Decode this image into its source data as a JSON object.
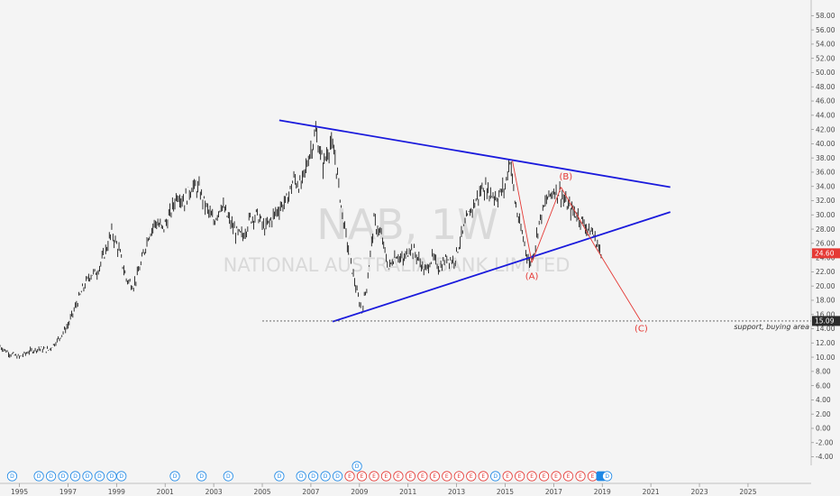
{
  "chart_data": {
    "type": "line",
    "watermark": {
      "symbol": "NAB, 1W",
      "name": "NATIONAL AUSTRALIA BANK LIMITED"
    },
    "xlim": [
      1994.2,
      2027.6
    ],
    "ylim": [
      -5.2,
      60.2
    ],
    "x_ticks": [
      "1995",
      "1997",
      "1999",
      "2001",
      "2003",
      "2005",
      "2007",
      "2009",
      "2011",
      "2013",
      "2015",
      "2017",
      "2019",
      "2021",
      "2023",
      "2025"
    ],
    "x_tick_values": [
      1995,
      1997,
      1999,
      2001,
      2003,
      2005,
      2007,
      2009,
      2011,
      2013,
      2015,
      2017,
      2019,
      2021,
      2023,
      2025
    ],
    "y_ticks": [
      "-4.00",
      "-2.00",
      "0.00",
      "2.00",
      "4.00",
      "6.00",
      "8.00",
      "10.00",
      "12.00",
      "14.00",
      "16.00",
      "18.00",
      "20.00",
      "22.00",
      "24.00",
      "26.00",
      "28.00",
      "30.00",
      "32.00",
      "34.00",
      "36.00",
      "38.00",
      "40.00",
      "42.00",
      "44.00",
      "46.00",
      "48.00",
      "50.00",
      "52.00",
      "54.00",
      "56.00",
      "58.00"
    ],
    "price_series": {
      "name": "NAB",
      "x": [
        1994.2,
        1994.6,
        1995.0,
        1995.4,
        1995.8,
        1996.2,
        1996.6,
        1997.0,
        1997.3,
        1997.6,
        1997.9,
        1998.2,
        1998.5,
        1998.8,
        1999.1,
        1999.4,
        1999.7,
        2000.0,
        2000.3,
        2000.6,
        2000.9,
        2001.2,
        2001.5,
        2001.8,
        2002.1,
        2002.4,
        2002.7,
        2003.0,
        2003.3,
        2003.6,
        2003.9,
        2004.2,
        2004.5,
        2004.8,
        2005.1,
        2005.4,
        2005.7,
        2006.0,
        2006.3,
        2006.6,
        2006.9,
        2007.2,
        2007.5,
        2007.8,
        2008.0,
        2008.3,
        2008.6,
        2008.9,
        2009.1,
        2009.3,
        2009.6,
        2009.9,
        2010.2,
        2010.5,
        2010.8,
        2011.1,
        2011.4,
        2011.7,
        2012.0,
        2012.3,
        2012.6,
        2012.9,
        2013.2,
        2013.5,
        2013.8,
        2014.1,
        2014.4,
        2014.7,
        2015.0,
        2015.2,
        2015.4,
        2015.6,
        2015.8,
        2016.0,
        2016.2,
        2016.4,
        2016.7,
        2017.0,
        2017.3,
        2017.5,
        2017.8,
        2018.1,
        2018.4,
        2018.6,
        2018.9,
        2019.0
      ],
      "y": [
        11.5,
        10.5,
        10.0,
        10.8,
        11.2,
        11.0,
        12.5,
        14.5,
        17.0,
        19.5,
        21.5,
        22.0,
        24.5,
        27.5,
        25.0,
        21.0,
        20.0,
        23.0,
        27.0,
        29.0,
        28.0,
        30.0,
        33.0,
        32.0,
        34.0,
        33.5,
        31.0,
        29.0,
        31.5,
        29.5,
        27.5,
        27.0,
        29.5,
        30.0,
        28.0,
        29.5,
        31.0,
        32.0,
        35.0,
        34.0,
        38.0,
        41.5,
        37.0,
        40.0,
        38.0,
        30.0,
        24.0,
        19.0,
        16.5,
        20.0,
        29.0,
        27.0,
        22.5,
        24.5,
        23.5,
        25.5,
        24.0,
        22.0,
        24.0,
        22.5,
        24.0,
        23.5,
        27.0,
        30.0,
        32.0,
        34.0,
        33.0,
        32.5,
        34.0,
        38.0,
        32.0,
        28.5,
        26.0,
        23.0,
        25.0,
        29.0,
        32.0,
        33.5,
        33.0,
        31.5,
        30.5,
        29.5,
        28.0,
        27.5,
        25.0,
        23.0
      ]
    },
    "drawings": {
      "upper_trendline": {
        "color": "#1a1adc",
        "from": [
          2005.7,
          43.3
        ],
        "to": [
          2021.8,
          33.9
        ]
      },
      "lower_trendline": {
        "color": "#1a1adc",
        "from": [
          2007.9,
          15.0
        ],
        "to": [
          2021.8,
          30.4
        ]
      },
      "support_line": {
        "color": "#555555",
        "y": 15.09,
        "from_x": 2005.0,
        "note": "support, buying area",
        "price_tag": "15.09"
      },
      "wave_lines": {
        "color": "#e53935",
        "points": [
          [
            2015.3,
            37.6
          ],
          [
            2016.1,
            23.3
          ],
          [
            2017.3,
            33.9
          ],
          [
            2018.7,
            25.6
          ],
          [
            2020.6,
            15.0
          ]
        ]
      },
      "wave_labels": [
        {
          "text": "(A)",
          "x": 2016.1,
          "y": 21.0
        },
        {
          "text": "(B)",
          "x": 2017.5,
          "y": 35.0
        },
        {
          "text": "(C)",
          "x": 2020.6,
          "y": 13.6
        }
      ]
    },
    "current_price": {
      "value": 24.6,
      "label": "24.60",
      "color": "#e53935"
    },
    "events": {
      "row_y_value": -5.3,
      "items": [
        {
          "x": 1994.7,
          "label": "D",
          "kind": "dividend"
        },
        {
          "x": 1995.8,
          "label": "D",
          "kind": "dividend"
        },
        {
          "x": 1996.3,
          "label": "D",
          "kind": "dividend"
        },
        {
          "x": 1996.8,
          "label": "D",
          "kind": "dividend"
        },
        {
          "x": 1997.3,
          "label": "D",
          "kind": "dividend"
        },
        {
          "x": 1997.8,
          "label": "D",
          "kind": "dividend"
        },
        {
          "x": 1998.3,
          "label": "D",
          "kind": "dividend"
        },
        {
          "x": 1998.8,
          "label": "D",
          "kind": "dividend"
        },
        {
          "x": 1999.2,
          "label": "D",
          "kind": "dividend"
        },
        {
          "x": 2001.4,
          "label": "D",
          "kind": "dividend"
        },
        {
          "x": 2002.5,
          "label": "D",
          "kind": "dividend"
        },
        {
          "x": 2003.6,
          "label": "D",
          "kind": "dividend"
        },
        {
          "x": 2005.7,
          "label": "D",
          "kind": "dividend"
        },
        {
          "x": 2006.6,
          "label": "D",
          "kind": "dividend"
        },
        {
          "x": 2007.1,
          "label": "D",
          "kind": "dividend"
        },
        {
          "x": 2007.6,
          "label": "D",
          "kind": "dividend"
        },
        {
          "x": 2008.1,
          "label": "D",
          "kind": "dividend"
        },
        {
          "x": 2008.6,
          "label": "E",
          "kind": "earnings"
        },
        {
          "x": 2009.1,
          "label": "E",
          "kind": "earnings"
        },
        {
          "x": 2009.6,
          "label": "E",
          "kind": "earnings"
        },
        {
          "x": 2010.1,
          "label": "E",
          "kind": "earnings"
        },
        {
          "x": 2010.6,
          "label": "E",
          "kind": "earnings"
        },
        {
          "x": 2011.1,
          "label": "E",
          "kind": "earnings"
        },
        {
          "x": 2011.6,
          "label": "E",
          "kind": "earnings"
        },
        {
          "x": 2012.1,
          "label": "E",
          "kind": "earnings"
        },
        {
          "x": 2012.6,
          "label": "E",
          "kind": "earnings"
        },
        {
          "x": 2013.1,
          "label": "E",
          "kind": "earnings"
        },
        {
          "x": 2013.6,
          "label": "E",
          "kind": "earnings"
        },
        {
          "x": 2014.1,
          "label": "E",
          "kind": "earnings"
        },
        {
          "x": 2014.6,
          "label": "D",
          "kind": "dividend"
        },
        {
          "x": 2015.1,
          "label": "E",
          "kind": "earnings"
        },
        {
          "x": 2015.6,
          "label": "E",
          "kind": "earnings"
        },
        {
          "x": 2016.1,
          "label": "E",
          "kind": "earnings"
        },
        {
          "x": 2016.6,
          "label": "E",
          "kind": "earnings"
        },
        {
          "x": 2017.1,
          "label": "E",
          "kind": "earnings"
        },
        {
          "x": 2017.6,
          "label": "E",
          "kind": "earnings"
        },
        {
          "x": 2018.1,
          "label": "E",
          "kind": "earnings"
        },
        {
          "x": 2018.6,
          "label": "E",
          "kind": "earnings"
        },
        {
          "x": 2018.95,
          "label": "",
          "kind": "current"
        },
        {
          "x": 2019.2,
          "label": "D",
          "kind": "dividend"
        }
      ],
      "raised": {
        "x": 2008.9,
        "label": "D"
      }
    },
    "colors": {
      "background": "#f4f4f4",
      "price": "#000000",
      "dividend": "#1e88e5",
      "earnings": "#e53935",
      "axis_line": "#bfbfbf"
    }
  }
}
